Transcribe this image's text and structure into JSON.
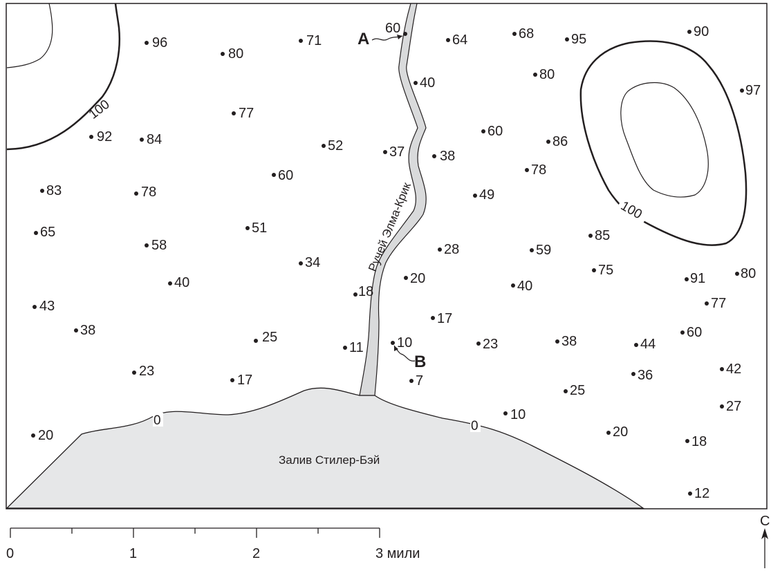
{
  "map": {
    "bay_label": "Залив Стилер-Бэй",
    "creek_label": "Ручей Элма-Крик",
    "contour_labels": [
      "100",
      "100",
      "0",
      "0"
    ],
    "point_labels": {
      "a": "A",
      "b": "B"
    },
    "scale_labels": [
      "0",
      "1",
      "2",
      "3 мили"
    ],
    "north_label": "С",
    "colors": {
      "ink": "#231f20",
      "water": "#e6e7e8",
      "creek": "#d9dadb"
    },
    "icons": [
      "north-arrow-icon",
      "leader-arrow-icon"
    ],
    "elevations": [
      "96",
      "80",
      "71",
      "60",
      "64",
      "68",
      "95",
      "90",
      "80",
      "40",
      "97",
      "77",
      "92",
      "84",
      "52",
      "37",
      "38",
      "60",
      "86",
      "78",
      "83",
      "78",
      "60",
      "49",
      "65",
      "58",
      "51",
      "34",
      "28",
      "59",
      "85",
      "75",
      "40",
      "20",
      "18",
      "91",
      "80",
      "43",
      "38",
      "40",
      "25",
      "11",
      "10",
      "17",
      "23",
      "38",
      "44",
      "60",
      "77",
      "23",
      "17",
      "7",
      "36",
      "42",
      "25",
      "10",
      "27",
      "20",
      "20",
      "18",
      "12"
    ]
  }
}
